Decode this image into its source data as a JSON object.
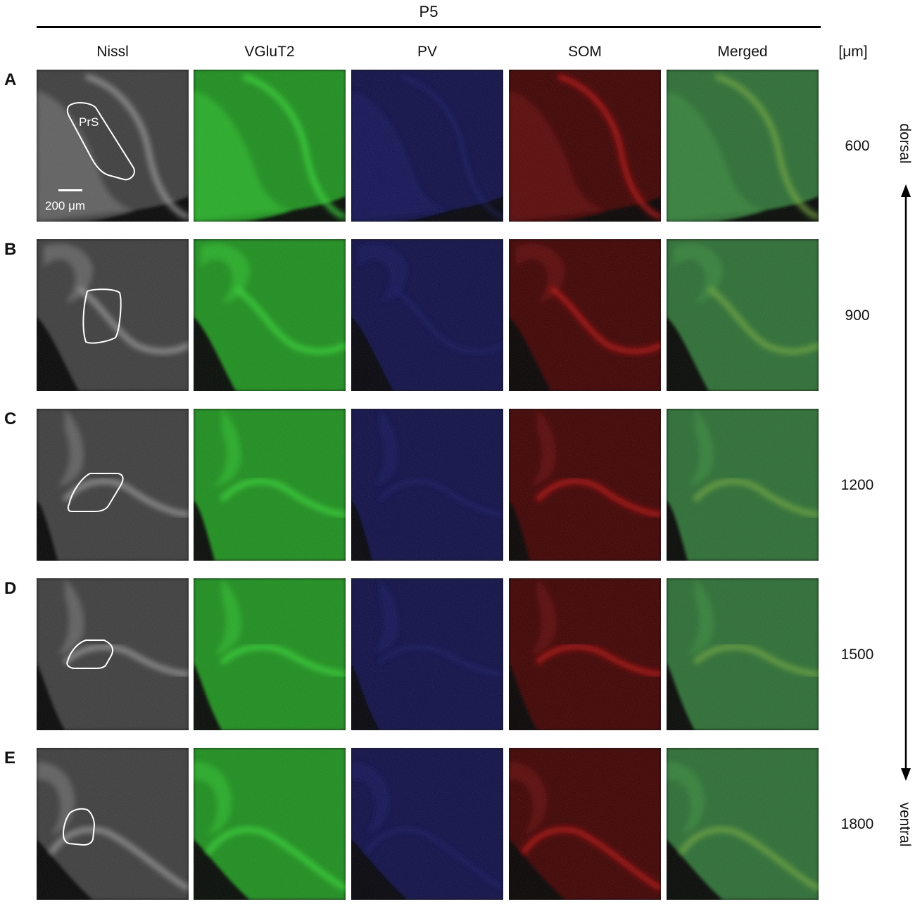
{
  "figure": {
    "title": "P5",
    "columns": [
      "Nissl",
      "VGluT2",
      "PV",
      "SOM",
      "Merged"
    ],
    "unit_label": "[μm]",
    "rows": [
      {
        "letter": "A",
        "depth": "600"
      },
      {
        "letter": "B",
        "depth": "900"
      },
      {
        "letter": "C",
        "depth": "1200"
      },
      {
        "letter": "D",
        "depth": "1500"
      },
      {
        "letter": "E",
        "depth": "1800"
      }
    ],
    "roi_label": "PrS",
    "scale_bar_label": "200 μm",
    "axis_top": "dorsal",
    "axis_bottom": "ventral"
  },
  "colors": {
    "nissl": "#2a2a2a",
    "vglut2": "#1e9a1e",
    "pv": "#0c0c3a",
    "som": "#4a0606",
    "merged": "#2c6a34"
  }
}
